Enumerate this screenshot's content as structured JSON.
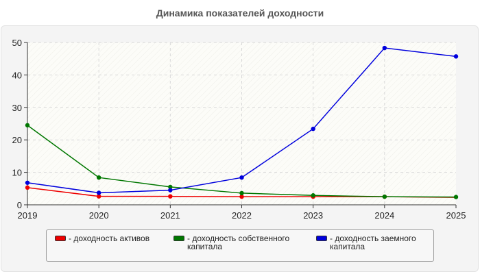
{
  "chart_data": {
    "type": "line",
    "title": "Динамика показателей доходности",
    "x": [
      "2019",
      "2020",
      "2021",
      "2022",
      "2023",
      "2024",
      "2025"
    ],
    "yticks": [
      "0",
      "10",
      "20",
      "30",
      "40",
      "50"
    ],
    "ylim": [
      0,
      50
    ],
    "grid": true,
    "legend_position": "bottom",
    "series": [
      {
        "name": "- доходность активов",
        "color": "#ee0000",
        "values": [
          5.3,
          2.6,
          2.6,
          2.5,
          2.5,
          2.5,
          2.3
        ],
        "markers": [
          true,
          true,
          true,
          true,
          true,
          true,
          false
        ]
      },
      {
        "name": "- доходность собственного капитала",
        "color": "#007700",
        "values": [
          24.5,
          8.4,
          5.5,
          3.6,
          2.9,
          2.5,
          2.4
        ],
        "markers": [
          true,
          true,
          true,
          true,
          true,
          true,
          true
        ]
      },
      {
        "name": "- доходность заемного капитала",
        "color": "#0000dd",
        "values": [
          6.8,
          3.7,
          4.5,
          8.4,
          23.4,
          48.3,
          45.7
        ],
        "markers": [
          true,
          true,
          true,
          true,
          true,
          true,
          true
        ]
      }
    ]
  }
}
